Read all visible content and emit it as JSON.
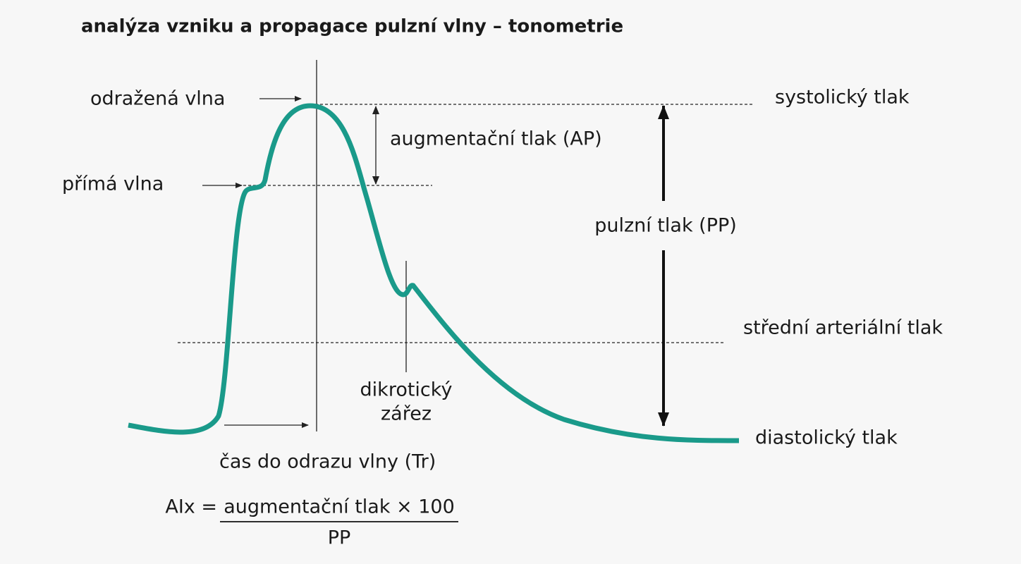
{
  "title": "analýza vzniku a propagace pulzní vlny – tonometrie",
  "annotations": {
    "reflected_wave": "odražená vlna",
    "direct_wave": "přímá vlna",
    "augmentation_pressure": "augmentační tlak (AP)",
    "systolic_pressure": "systolický tlak",
    "pulse_pressure": "pulzní tlak (PP)",
    "mean_arterial_pressure": "střední arteriální tlak",
    "dicrotic_notch": [
      "dikrotický",
      "zářez"
    ],
    "diastolic_pressure": "diastolický tlak",
    "reflection_time": "čas do odrazu vlny (Tr)"
  },
  "formula": {
    "lhs": "AIx =",
    "numerator": "augmentační tlak × 100",
    "denominator": "PP"
  }
}
